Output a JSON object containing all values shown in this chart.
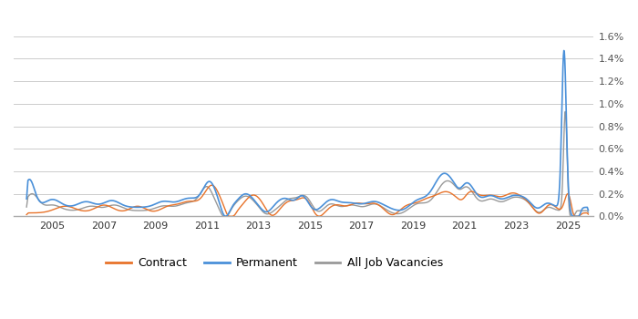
{
  "contract_color": "#e8732a",
  "permanent_color": "#4a90d9",
  "all_jobs_color": "#999999",
  "background_color": "#ffffff",
  "grid_color": "#cccccc",
  "xlabel_color": "#333333",
  "ylabel_color": "#555555",
  "legend_labels": [
    "Contract",
    "Permanent",
    "All Job Vacancies"
  ],
  "ylim": [
    0,
    0.018
  ],
  "yticks": [
    0,
    0.002,
    0.004,
    0.006,
    0.008,
    0.01,
    0.012,
    0.014,
    0.016
  ],
  "xticks": [
    2005,
    2007,
    2009,
    2011,
    2013,
    2015,
    2017,
    2019,
    2021,
    2023,
    2025
  ],
  "xlim": [
    2003.5,
    2026.0
  ]
}
